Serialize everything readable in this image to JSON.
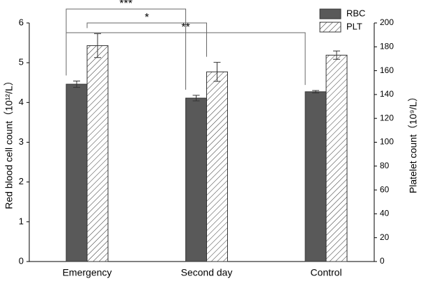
{
  "chart_data": {
    "type": "bar",
    "categories": [
      "Emergency",
      "Second day",
      "Control"
    ],
    "series": [
      {
        "name": "RBC",
        "color": "#595959",
        "axis": "y",
        "values": [
          4.46,
          4.11,
          4.27
        ],
        "errors": [
          0.08,
          0.07,
          0.03
        ]
      },
      {
        "name": "PLT",
        "color": "#333333",
        "hatch": true,
        "axis": "y2",
        "values": [
          181,
          159,
          173
        ],
        "errors": [
          10,
          8,
          3.5
        ]
      }
    ],
    "ylabel": "Red blood cell count（10¹²/L）",
    "y2label": "Platelet count（10⁹/L）",
    "ylim": [
      0,
      6
    ],
    "yticks": [
      0,
      1,
      2,
      3,
      4,
      5,
      6
    ],
    "y2lim": [
      0,
      200
    ],
    "y2ticks": [
      0,
      20,
      40,
      60,
      80,
      100,
      120,
      140,
      160,
      180,
      200
    ],
    "legend": "upper right",
    "annotations": [
      {
        "text": "***",
        "series": "RBC",
        "between": [
          "Emergency",
          "Second day"
        ]
      },
      {
        "text": "*",
        "series": "PLT",
        "between": [
          "Emergency",
          "Second day"
        ]
      },
      {
        "text": "**",
        "series": "RBC",
        "between": [
          "Emergency",
          "Control"
        ]
      }
    ]
  }
}
